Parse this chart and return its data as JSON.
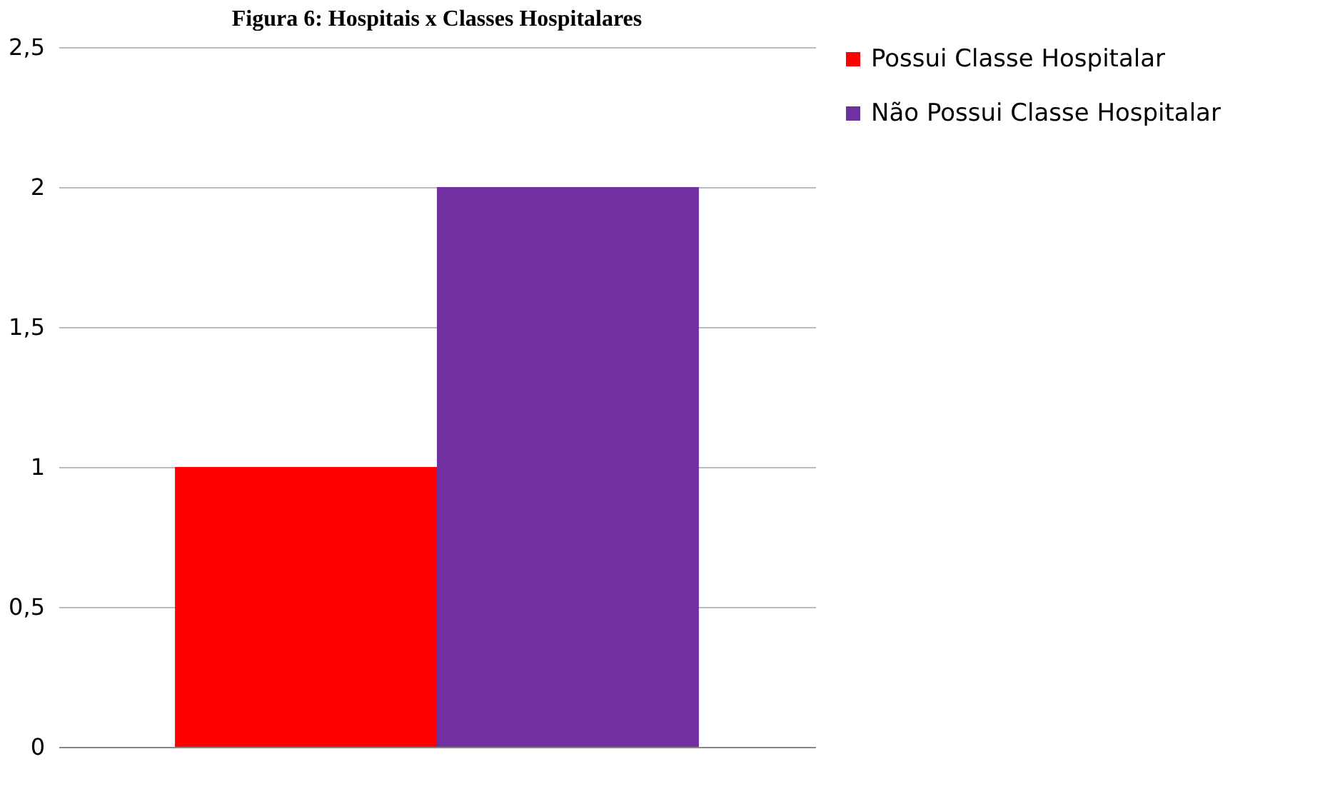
{
  "chart_data": {
    "type": "bar",
    "title": "Figura 6: Hospitais x Classes Hospitalares",
    "categories": [
      null
    ],
    "series": [
      {
        "name": "Possui Classe Hospitalar",
        "color": "#ff0000",
        "values": [
          1
        ]
      },
      {
        "name": "Não Possui Classe Hospitalar",
        "color": "#7030a0",
        "values": [
          2
        ]
      }
    ],
    "ylim": [
      0,
      2.5
    ],
    "yticks": [
      {
        "value": 0,
        "label": "0"
      },
      {
        "value": 0.5,
        "label": "0,5"
      },
      {
        "value": 1,
        "label": "1"
      },
      {
        "value": 1.5,
        "label": "1,5"
      },
      {
        "value": 2,
        "label": "2"
      },
      {
        "value": 2.5,
        "label": "2,5"
      }
    ],
    "grid": "y",
    "legend": "right"
  }
}
